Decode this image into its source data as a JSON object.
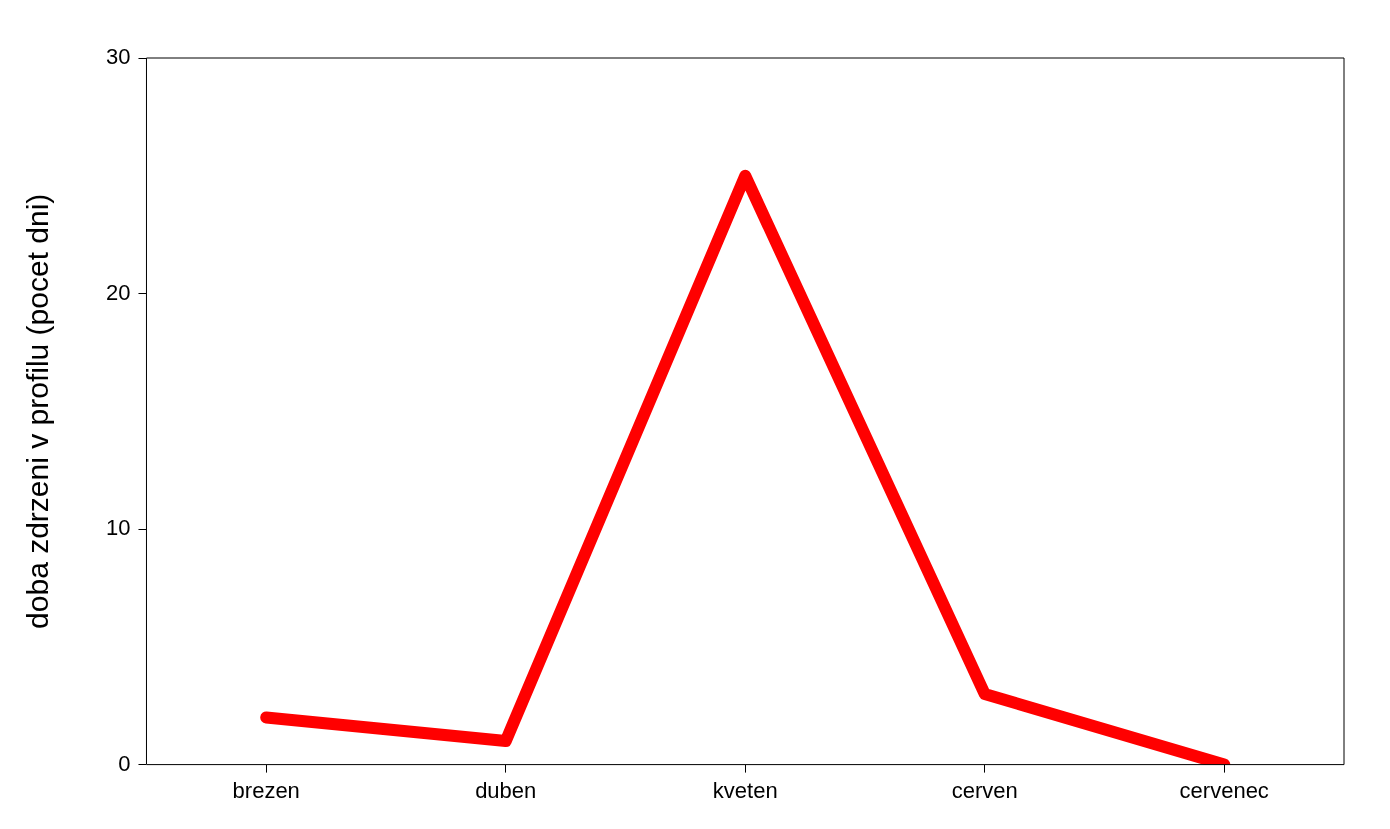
{
  "chart_data": {
    "type": "line",
    "ylabel": "doba zdrzeni v profilu (pocet dni)",
    "categories": [
      "brezen",
      "duben",
      "kveten",
      "cerven",
      "cervenec"
    ],
    "series": [
      {
        "color": "#ff0000",
        "values": [
          2,
          1,
          25,
          3,
          0
        ]
      }
    ],
    "ylim": [
      0,
      30
    ],
    "yticks": [
      0,
      10,
      20,
      30
    ],
    "grid": false,
    "legend": false,
    "marker": "none",
    "line_style": "solid"
  }
}
